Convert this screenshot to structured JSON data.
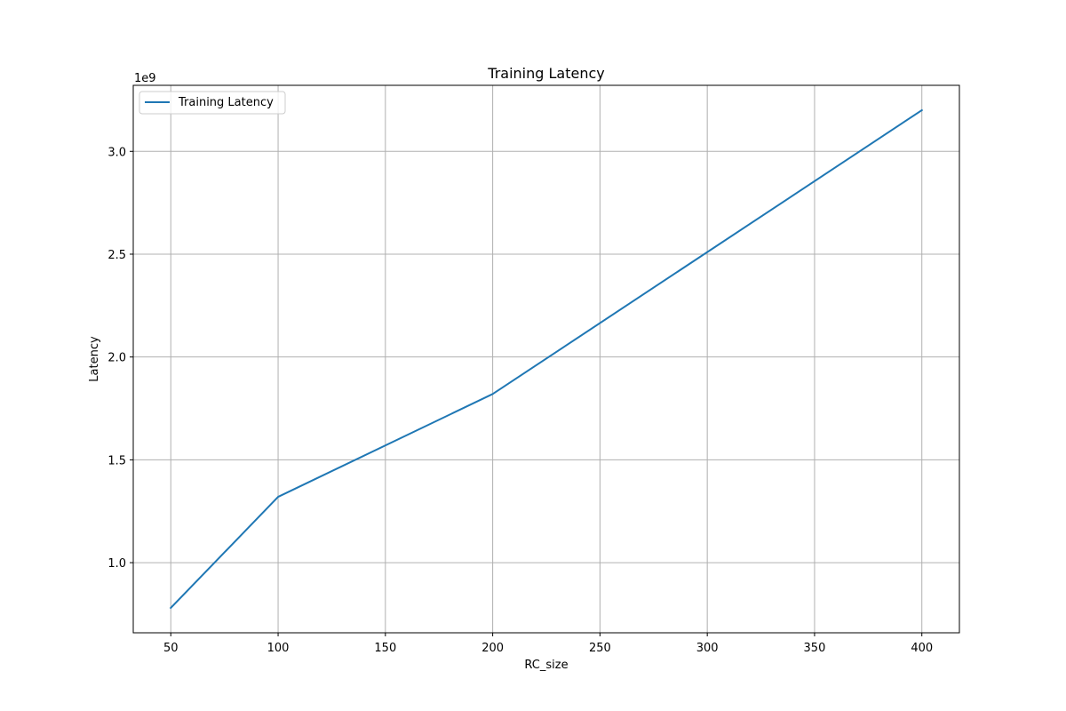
{
  "chart_data": {
    "type": "line",
    "title": "Training Latency",
    "xlabel": "RC_size",
    "ylabel": "Latency",
    "y_offset_label": "1e9",
    "xlim": [
      32.5,
      417.5
    ],
    "ylim": [
      0.659,
      3.321
    ],
    "x_ticks": [
      50,
      100,
      150,
      200,
      250,
      300,
      350,
      400
    ],
    "y_ticks": [
      1.0,
      1.5,
      2.0,
      2.5,
      3.0
    ],
    "y_tick_labels": [
      "1.0",
      "1.5",
      "2.0",
      "2.5",
      "3.0"
    ],
    "grid": true,
    "legend_position": "top-left",
    "series": [
      {
        "name": "Training Latency",
        "color": "#1f77b4",
        "x": [
          50,
          100,
          200,
          400
        ],
        "y": [
          0.78,
          1.32,
          1.82,
          3.2
        ]
      }
    ]
  }
}
